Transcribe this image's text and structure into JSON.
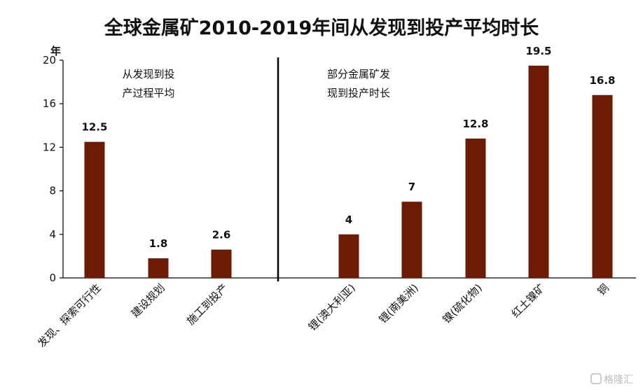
{
  "chart_data": {
    "type": "bar",
    "title": "全球金属矿2010-2019年间从发现到投产平均时长",
    "ylabel": "年",
    "ylim": [
      0,
      20
    ],
    "yticks": [
      0,
      4,
      8,
      12,
      16,
      20
    ],
    "categories": [
      "发现、探索可行性",
      "建设规划",
      "施工到投产",
      "锂(澳大利亚)",
      "锂(南美洲)",
      "镍(硫化物)",
      "红土镍矿",
      "铜"
    ],
    "values": [
      12.5,
      1.8,
      2.6,
      4,
      7,
      12.8,
      19.5,
      16.8
    ],
    "data_labels": [
      "12.5",
      "1.8",
      "2.6",
      "4",
      "7",
      "12.8",
      "19.5",
      "16.8"
    ],
    "groups": [
      {
        "lines": [
          "从发现到投",
          "产过程平均"
        ]
      },
      {
        "lines": [
          "部分金属矿发",
          "现到投产时长"
        ]
      }
    ],
    "bar_color": "#6e1b06",
    "grid": false,
    "legend": "none"
  },
  "watermark": "格隆汇"
}
